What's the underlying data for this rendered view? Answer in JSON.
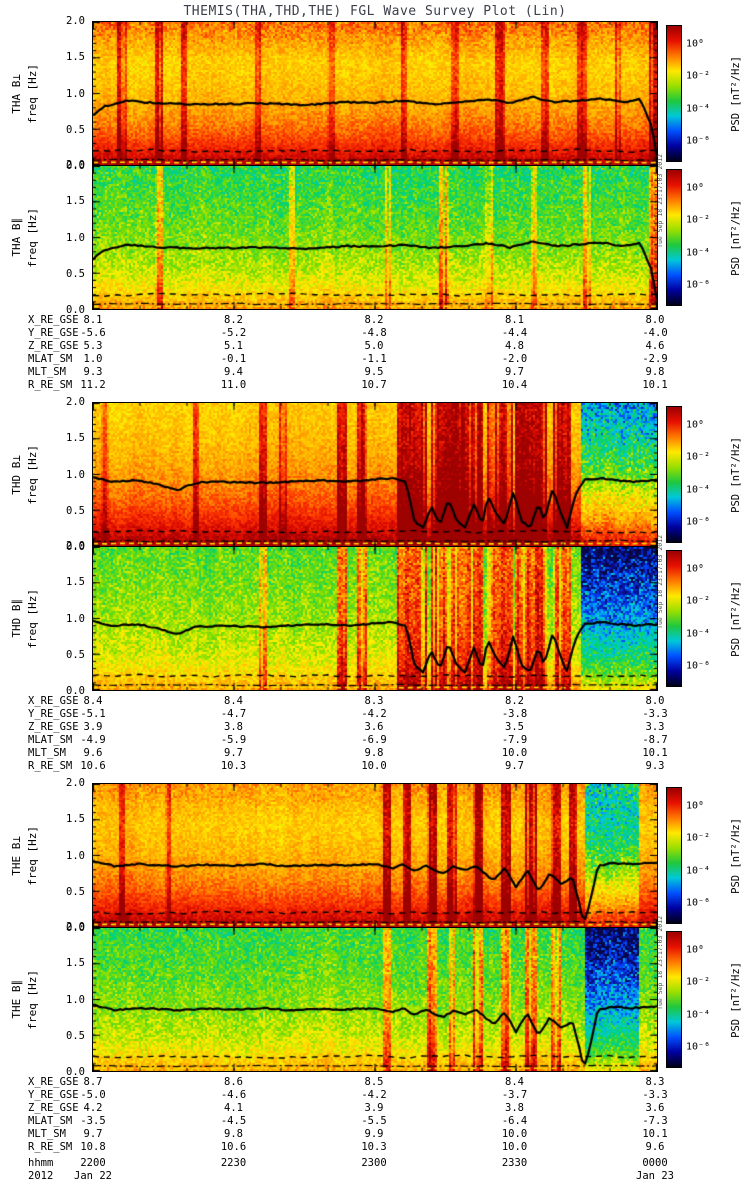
{
  "title": "THEMIS(THA,THD,THE) FGL Wave Survey Plot (Lin)",
  "chart_data": {
    "type": "heatmap",
    "title": "THEMIS(THA,THD,THE) FGL Wave Survey Plot (Lin)",
    "timestamp": "Tue Sep 18 23:17:03 2012",
    "time_axis": {
      "label": "hhmm",
      "ticks": [
        "2200",
        "2230",
        "2300",
        "2330",
        "0000"
      ],
      "year": "2012",
      "date_start": "Jan 22",
      "date_end": "Jan 23"
    },
    "freq_axis": {
      "label": "freq [Hz]",
      "lim": [
        0,
        2.0
      ],
      "ticks": [
        "2.0",
        "1.5",
        "1.0",
        "0.5",
        "0.0"
      ]
    },
    "colorbar": {
      "label": "PSD [nT²/Hz]",
      "ticks": [
        "10⁰",
        "10⁻²",
        "10⁻⁴",
        "10⁻⁶"
      ],
      "gradient": [
        "#9b0000",
        "#e81000",
        "#ff7a00",
        "#ffe800",
        "#9adf00",
        "#1fc83c",
        "#00c8d8",
        "#0050ff",
        "#0000a0",
        "#000018"
      ]
    },
    "overlay_lines": {
      "trace_color": "#000000",
      "dashed_hz": 0.2,
      "dashdot_hz": 0.07,
      "yellow_dash_hz": 0.035
    },
    "panels": [
      {
        "name": "THA B⊥",
        "trace": "THA",
        "pattern": {
          "seed": 101,
          "base": 0.6,
          "low": 0.38,
          "lowScale": 0.28,
          "noise": 0.11,
          "topHot": 0.16,
          "topCool": 0,
          "streaks": [
            {
              "x": 0.05,
              "w": 0.012,
              "v": 0.2
            },
            {
              "x": 0.115,
              "w": 0.008,
              "v": 0.26
            },
            {
              "x": 0.16,
              "w": 0.005,
              "v": 0.18
            },
            {
              "x": 0.29,
              "w": 0.004,
              "v": 0.16
            },
            {
              "x": 0.42,
              "w": 0.004,
              "v": 0.14
            },
            {
              "x": 0.55,
              "w": 0.005,
              "v": 0.18
            },
            {
              "x": 0.64,
              "w": 0.004,
              "v": 0.16
            },
            {
              "x": 0.72,
              "w": 0.01,
              "v": 0.2
            },
            {
              "x": 0.8,
              "w": 0.006,
              "v": 0.18
            },
            {
              "x": 0.865,
              "w": 0.008,
              "v": 0.2
            },
            {
              "x": 0.93,
              "w": 0.005,
              "v": 0.16
            },
            {
              "x": 0.995,
              "w": 0.012,
              "v": 0.3
            }
          ]
        }
      },
      {
        "name": "THA B∥",
        "trace": "THA",
        "pattern": {
          "seed": 102,
          "base": 0.54,
          "low": 0.18,
          "lowScale": 0.15,
          "noise": 0.13,
          "topHot": 0,
          "topCool": 0.14,
          "streaks": [
            {
              "x": 0.115,
              "w": 0.008,
              "v": 0.24
            },
            {
              "x": 0.35,
              "w": 0.004,
              "v": 0.16
            },
            {
              "x": 0.52,
              "w": 0.004,
              "v": 0.14
            },
            {
              "x": 0.62,
              "w": 0.01,
              "v": 0.24
            },
            {
              "x": 0.7,
              "w": 0.005,
              "v": 0.18
            },
            {
              "x": 0.78,
              "w": 0.004,
              "v": 0.16
            },
            {
              "x": 0.875,
              "w": 0.008,
              "v": 0.2
            },
            {
              "x": 0.995,
              "w": 0.012,
              "v": 0.3
            }
          ]
        }
      },
      {
        "name": "THD B⊥",
        "trace": "THD",
        "pattern": {
          "seed": 103,
          "base": 0.6,
          "low": 0.4,
          "lowScale": 0.38,
          "noise": 0.11,
          "topHot": 0,
          "topCool": 0,
          "streaks": [
            {
              "x": 0.02,
              "w": 0.006,
              "v": 0.18
            },
            {
              "x": 0.18,
              "w": 0.005,
              "v": 0.18
            },
            {
              "x": 0.3,
              "w": 0.006,
              "v": 0.24
            },
            {
              "x": 0.335,
              "w": 0.004,
              "v": 0.2
            },
            {
              "x": 0.44,
              "w": 0.012,
              "v": 0.3
            },
            {
              "x": 0.475,
              "w": 0.008,
              "v": 0.26
            },
            {
              "x": 0.565,
              "w": 0.045,
              "v": 0.32
            },
            {
              "x": 0.615,
              "w": 0.03,
              "v": 0.3
            },
            {
              "x": 0.66,
              "w": 0.05,
              "v": 0.33
            },
            {
              "x": 0.72,
              "w": 0.04,
              "v": 0.31
            },
            {
              "x": 0.775,
              "w": 0.05,
              "v": 0.33
            },
            {
              "x": 0.83,
              "w": 0.025,
              "v": 0.3
            }
          ],
          "tail": {
            "start": 0.865,
            "end": 1.0,
            "v": 0.38
          }
        }
      },
      {
        "name": "THD B∥",
        "trace": "THD",
        "pattern": {
          "seed": 104,
          "base": 0.55,
          "low": 0.15,
          "lowScale": 0.15,
          "noise": 0.13,
          "topHot": 0,
          "topCool": 0.1,
          "streaks": [
            {
              "x": 0.3,
              "w": 0.005,
              "v": 0.22
            },
            {
              "x": 0.44,
              "w": 0.012,
              "v": 0.32
            },
            {
              "x": 0.475,
              "w": 0.008,
              "v": 0.28
            },
            {
              "x": 0.565,
              "w": 0.045,
              "v": 0.35
            },
            {
              "x": 0.615,
              "w": 0.03,
              "v": 0.32
            },
            {
              "x": 0.66,
              "w": 0.05,
              "v": 0.35
            },
            {
              "x": 0.72,
              "w": 0.04,
              "v": 0.33
            },
            {
              "x": 0.775,
              "w": 0.05,
              "v": 0.35
            },
            {
              "x": 0.83,
              "w": 0.025,
              "v": 0.32
            }
          ],
          "tail": {
            "start": 0.865,
            "end": 1.0,
            "v": 0.42
          }
        }
      },
      {
        "name": "THE B⊥",
        "trace": "THE",
        "pattern": {
          "seed": 105,
          "base": 0.6,
          "low": 0.38,
          "lowScale": 0.3,
          "noise": 0.11,
          "topHot": 0.1,
          "topCool": 0,
          "streaks": [
            {
              "x": 0.05,
              "w": 0.004,
              "v": 0.16
            },
            {
              "x": 0.13,
              "w": 0.004,
              "v": 0.16
            },
            {
              "x": 0.52,
              "w": 0.008,
              "v": 0.3
            },
            {
              "x": 0.555,
              "w": 0.006,
              "v": 0.28
            },
            {
              "x": 0.6,
              "w": 0.01,
              "v": 0.31
            },
            {
              "x": 0.635,
              "w": 0.008,
              "v": 0.29
            },
            {
              "x": 0.68,
              "w": 0.012,
              "v": 0.31
            },
            {
              "x": 0.73,
              "w": 0.01,
              "v": 0.29
            },
            {
              "x": 0.775,
              "w": 0.014,
              "v": 0.32
            },
            {
              "x": 0.82,
              "w": 0.01,
              "v": 0.29
            },
            {
              "x": 0.848,
              "w": 0.008,
              "v": 0.29
            }
          ],
          "tail": {
            "start": 0.875,
            "end": 0.97,
            "v": 0.36
          }
        }
      },
      {
        "name": "THE B∥",
        "trace": "THE",
        "pattern": {
          "seed": 106,
          "base": 0.54,
          "low": 0.16,
          "lowScale": 0.15,
          "noise": 0.13,
          "topHot": 0,
          "topCool": 0.12,
          "streaks": [
            {
              "x": 0.52,
              "w": 0.008,
              "v": 0.26
            },
            {
              "x": 0.6,
              "w": 0.01,
              "v": 0.28
            },
            {
              "x": 0.635,
              "w": 0.006,
              "v": 0.24
            },
            {
              "x": 0.68,
              "w": 0.012,
              "v": 0.28
            },
            {
              "x": 0.73,
              "w": 0.01,
              "v": 0.26
            },
            {
              "x": 0.775,
              "w": 0.014,
              "v": 0.28
            },
            {
              "x": 0.82,
              "w": 0.01,
              "v": 0.26
            }
          ],
          "tail": {
            "start": 0.875,
            "end": 0.97,
            "v": 0.4
          }
        }
      }
    ],
    "traces": {
      "THA": [
        [
          0,
          0.7
        ],
        [
          0.02,
          0.82
        ],
        [
          0.06,
          0.9
        ],
        [
          0.12,
          0.86
        ],
        [
          0.2,
          0.85
        ],
        [
          0.3,
          0.86
        ],
        [
          0.38,
          0.84
        ],
        [
          0.45,
          0.88
        ],
        [
          0.5,
          0.87
        ],
        [
          0.55,
          0.9
        ],
        [
          0.6,
          0.85
        ],
        [
          0.65,
          0.88
        ],
        [
          0.7,
          0.92
        ],
        [
          0.74,
          0.86
        ],
        [
          0.78,
          0.95
        ],
        [
          0.82,
          0.88
        ],
        [
          0.86,
          0.9
        ],
        [
          0.9,
          0.93
        ],
        [
          0.94,
          0.88
        ],
        [
          0.97,
          0.92
        ],
        [
          0.99,
          0.55
        ],
        [
          1,
          0.12
        ]
      ],
      "THD": [
        [
          0,
          0.97
        ],
        [
          0.03,
          0.9
        ],
        [
          0.08,
          0.92
        ],
        [
          0.12,
          0.85
        ],
        [
          0.15,
          0.78
        ],
        [
          0.18,
          0.88
        ],
        [
          0.22,
          0.9
        ],
        [
          0.3,
          0.88
        ],
        [
          0.35,
          0.9
        ],
        [
          0.4,
          0.92
        ],
        [
          0.45,
          0.9
        ],
        [
          0.5,
          0.93
        ],
        [
          0.53,
          0.95
        ],
        [
          0.555,
          0.9
        ],
        [
          0.57,
          0.35
        ],
        [
          0.585,
          0.25
        ],
        [
          0.6,
          0.55
        ],
        [
          0.615,
          0.3
        ],
        [
          0.63,
          0.65
        ],
        [
          0.645,
          0.35
        ],
        [
          0.66,
          0.25
        ],
        [
          0.675,
          0.6
        ],
        [
          0.69,
          0.3
        ],
        [
          0.7,
          0.7
        ],
        [
          0.715,
          0.45
        ],
        [
          0.73,
          0.3
        ],
        [
          0.745,
          0.75
        ],
        [
          0.76,
          0.35
        ],
        [
          0.775,
          0.25
        ],
        [
          0.79,
          0.6
        ],
        [
          0.8,
          0.35
        ],
        [
          0.815,
          0.8
        ],
        [
          0.83,
          0.45
        ],
        [
          0.84,
          0.25
        ],
        [
          0.855,
          0.7
        ],
        [
          0.87,
          0.92
        ],
        [
          0.9,
          0.95
        ],
        [
          0.93,
          0.92
        ],
        [
          0.96,
          0.9
        ],
        [
          1,
          0.92
        ]
      ],
      "THE": [
        [
          0,
          0.92
        ],
        [
          0.04,
          0.85
        ],
        [
          0.08,
          0.88
        ],
        [
          0.15,
          0.85
        ],
        [
          0.2,
          0.87
        ],
        [
          0.25,
          0.86
        ],
        [
          0.3,
          0.88
        ],
        [
          0.35,
          0.85
        ],
        [
          0.4,
          0.87
        ],
        [
          0.45,
          0.86
        ],
        [
          0.5,
          0.88
        ],
        [
          0.53,
          0.82
        ],
        [
          0.55,
          0.88
        ],
        [
          0.57,
          0.78
        ],
        [
          0.59,
          0.86
        ],
        [
          0.62,
          0.75
        ],
        [
          0.64,
          0.85
        ],
        [
          0.66,
          0.8
        ],
        [
          0.68,
          0.85
        ],
        [
          0.71,
          0.65
        ],
        [
          0.73,
          0.82
        ],
        [
          0.75,
          0.55
        ],
        [
          0.77,
          0.8
        ],
        [
          0.79,
          0.5
        ],
        [
          0.81,
          0.75
        ],
        [
          0.83,
          0.6
        ],
        [
          0.85,
          0.7
        ],
        [
          0.86,
          0.4
        ],
        [
          0.87,
          0.05
        ],
        [
          0.88,
          0.3
        ],
        [
          0.895,
          0.85
        ],
        [
          0.92,
          0.9
        ],
        [
          0.95,
          0.88
        ],
        [
          1,
          0.9
        ]
      ]
    },
    "ephemeris": [
      {
        "satellite": "THA",
        "rows": [
          {
            "label": "X_RE_GSE",
            "values": [
              "8.1",
              "8.2",
              "8.2",
              "8.1",
              "8.0"
            ]
          },
          {
            "label": "Y_RE_GSE",
            "values": [
              "-5.6",
              "-5.2",
              "-4.8",
              "-4.4",
              "-4.0"
            ]
          },
          {
            "label": "Z_RE_GSE",
            "values": [
              "5.3",
              "5.1",
              "5.0",
              "4.8",
              "4.6"
            ]
          },
          {
            "label": "MLAT_SM",
            "values": [
              "1.0",
              "-0.1",
              "-1.1",
              "-2.0",
              "-2.9"
            ]
          },
          {
            "label": "MLT_SM",
            "values": [
              "9.3",
              "9.4",
              "9.5",
              "9.7",
              "9.8"
            ]
          },
          {
            "label": "R_RE_SM",
            "values": [
              "11.2",
              "11.0",
              "10.7",
              "10.4",
              "10.1"
            ]
          }
        ]
      },
      {
        "satellite": "THD",
        "rows": [
          {
            "label": "X_RE_GSE",
            "values": [
              "8.4",
              "8.4",
              "8.3",
              "8.2",
              "8.0"
            ]
          },
          {
            "label": "Y_RE_GSE",
            "values": [
              "-5.1",
              "-4.7",
              "-4.2",
              "-3.8",
              "-3.3"
            ]
          },
          {
            "label": "Z_RE_GSE",
            "values": [
              "3.9",
              "3.8",
              "3.6",
              "3.5",
              "3.3"
            ]
          },
          {
            "label": "MLAT_SM",
            "values": [
              "-4.9",
              "-5.9",
              "-6.9",
              "-7.9",
              "-8.7"
            ]
          },
          {
            "label": "MLT_SM",
            "values": [
              "9.6",
              "9.7",
              "9.8",
              "10.0",
              "10.1"
            ]
          },
          {
            "label": "R_RE_SM",
            "values": [
              "10.6",
              "10.3",
              "10.0",
              "9.7",
              "9.3"
            ]
          }
        ]
      },
      {
        "satellite": "THE",
        "rows": [
          {
            "label": "X_RE_GSE",
            "values": [
              "8.7",
              "8.6",
              "8.5",
              "8.4",
              "8.3"
            ]
          },
          {
            "label": "Y_RE_GSE",
            "values": [
              "-5.0",
              "-4.6",
              "-4.2",
              "-3.7",
              "-3.3"
            ]
          },
          {
            "label": "Z_RE_GSE",
            "values": [
              "4.2",
              "4.1",
              "3.9",
              "3.8",
              "3.6"
            ]
          },
          {
            "label": "MLAT_SM",
            "values": [
              "-3.5",
              "-4.5",
              "-5.5",
              "-6.4",
              "-7.3"
            ]
          },
          {
            "label": "MLT_SM",
            "values": [
              "9.7",
              "9.8",
              "9.9",
              "10.0",
              "10.1"
            ]
          },
          {
            "label": "R_RE_SM",
            "values": [
              "10.8",
              "10.6",
              "10.3",
              "10.0",
              "9.6"
            ]
          }
        ]
      }
    ]
  }
}
